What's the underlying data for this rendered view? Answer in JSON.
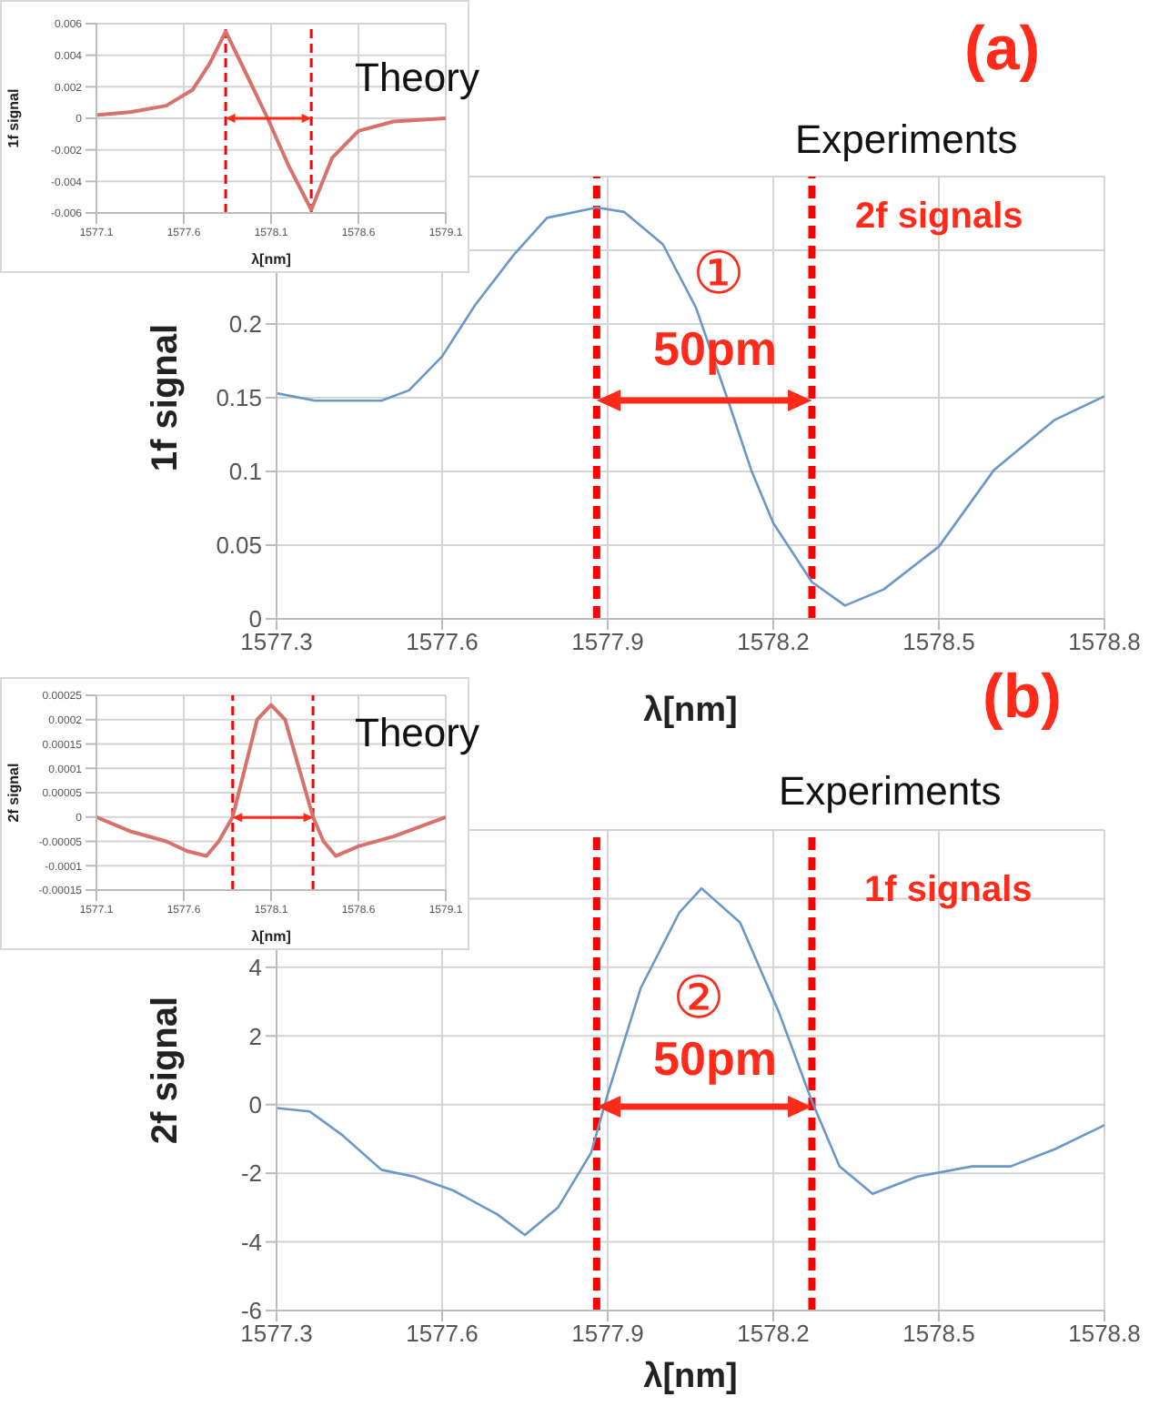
{
  "chart_data": [
    {
      "type": "line",
      "title": "Theory",
      "xlabel": "λ[nm]",
      "ylabel": "1f signal",
      "color": "#d6726b",
      "x": [
        1577.1,
        1577.3,
        1577.5,
        1577.65,
        1577.75,
        1577.84,
        1577.95,
        1578.08,
        1578.2,
        1578.33,
        1578.45,
        1578.6,
        1578.8,
        1579.1
      ],
      "values": [
        0.0002,
        0.0004,
        0.0008,
        0.0018,
        0.0035,
        0.0055,
        0.003,
        0,
        -0.003,
        -0.0058,
        -0.0025,
        -0.0008,
        -0.0002,
        0
      ],
      "xlim": [
        1577.1,
        1579.1
      ],
      "xticks": [
        1577.1,
        1577.6,
        1578.1,
        1578.6,
        1579.1
      ],
      "ylim": [
        -0.006,
        0.006
      ],
      "yticks": [
        -0.006,
        -0.004,
        -0.002,
        0,
        0.002,
        0.004,
        0.006
      ],
      "grid": true,
      "ref_lines": [
        {
          "axis": "x",
          "value": 1577.84,
          "color": "#ff0000",
          "line_style": "dashed"
        },
        {
          "axis": "x",
          "value": 1578.33,
          "color": "#ff0000",
          "line_style": "dashed"
        }
      ]
    },
    {
      "type": "line",
      "title": "Experiments",
      "xlabel": "λ[nm]",
      "ylabel": "1f signal",
      "color": "#6b96c8",
      "x": [
        1577.3,
        1577.37,
        1577.49,
        1577.54,
        1577.6,
        1577.66,
        1577.73,
        1577.79,
        1577.88,
        1577.93,
        1578.0,
        1578.06,
        1578.12,
        1578.16,
        1578.2,
        1578.27,
        1578.33,
        1578.4,
        1578.5,
        1578.6,
        1578.71,
        1578.8
      ],
      "values": [
        0.153,
        0.148,
        0.148,
        0.155,
        0.178,
        0.213,
        0.247,
        0.272,
        0.279,
        0.276,
        0.254,
        0.211,
        0.146,
        0.101,
        0.065,
        0.025,
        0.009,
        0.02,
        0.049,
        0.101,
        0.135,
        0.151
      ],
      "xlim": [
        1577.3,
        1578.8
      ],
      "xticks": [
        1577.3,
        1577.6,
        1577.9,
        1578.2,
        1578.5,
        1578.8
      ],
      "ylim": [
        0,
        0.3
      ],
      "yticks": [
        0,
        0.05,
        0.1,
        0.15,
        0.2,
        {
          "value": 0.25,
          "label": null
        },
        {
          "value": 0.3,
          "label": null
        }
      ],
      "grid": true,
      "annotations": [
        "(a)",
        "2f signals",
        "①",
        "50pm"
      ],
      "ref_lines": [
        {
          "axis": "x",
          "value": 1577.88,
          "color": "#ff0000",
          "line_style": "dashed"
        },
        {
          "axis": "x",
          "value": 1578.27,
          "color": "#ff0000",
          "line_style": "dashed"
        }
      ]
    },
    {
      "type": "line",
      "title": "Theory",
      "xlabel": "λ[nm]",
      "ylabel": "2f signal",
      "color": "#d6726b",
      "x": [
        1577.1,
        1577.3,
        1577.5,
        1577.62,
        1577.73,
        1577.8,
        1577.88,
        1577.95,
        1578.02,
        1578.1,
        1578.18,
        1578.26,
        1578.34,
        1578.4,
        1578.47,
        1578.6,
        1578.8,
        1579.1
      ],
      "values": [
        0,
        -3e-05,
        -5e-05,
        -7e-05,
        -8e-05,
        -5e-05,
        0,
        0.0001,
        0.0002,
        0.00023,
        0.0002,
        0.0001,
        0,
        -5e-05,
        -8e-05,
        -6e-05,
        -4e-05,
        0
      ],
      "xlim": [
        1577.1,
        1579.1
      ],
      "xticks": [
        1577.1,
        1577.6,
        1578.1,
        1578.6,
        1579.1
      ],
      "ylim": [
        -0.00015,
        0.00025
      ],
      "yticks": [
        -0.00015,
        -0.0001,
        {
          "value": -5e-05,
          "label": "-0.00005"
        },
        0,
        {
          "value": 5e-05,
          "label": "0.00005"
        },
        0.0001,
        0.00015,
        0.0002,
        0.00025
      ],
      "grid": true,
      "ref_lines": [
        {
          "axis": "x",
          "value": 1577.88,
          "color": "#ff0000",
          "line_style": "dashed"
        },
        {
          "axis": "x",
          "value": 1578.34,
          "color": "#ff0000",
          "line_style": "dashed"
        }
      ]
    },
    {
      "type": "line",
      "title": "Experiments",
      "xlabel": "λ[nm]",
      "ylabel": "2f signal",
      "color": "#6b96c8",
      "x": [
        1577.3,
        1577.36,
        1577.42,
        1577.49,
        1577.55,
        1577.62,
        1577.7,
        1577.75,
        1577.81,
        1577.87,
        1577.9,
        1577.96,
        1578.03,
        1578.07,
        1578.14,
        1578.21,
        1578.27,
        1578.32,
        1578.38,
        1578.46,
        1578.56,
        1578.63,
        1578.71,
        1578.8
      ],
      "values": [
        -0.1,
        -0.2,
        -0.9,
        -1.9,
        -2.1,
        -2.5,
        -3.2,
        -3.8,
        -3.0,
        -1.4,
        0.3,
        3.4,
        5.6,
        6.3,
        5.3,
        2.7,
        0.1,
        -1.8,
        -2.6,
        -2.1,
        -1.8,
        -1.8,
        -1.3,
        -0.6
      ],
      "xlim": [
        1577.3,
        1578.8
      ],
      "xticks": [
        1577.3,
        1577.6,
        1577.9,
        1578.2,
        1578.5,
        1578.8
      ],
      "ylim": [
        -6,
        8
      ],
      "yticks": [
        -6,
        -4,
        -2,
        0,
        2,
        4,
        {
          "value": 6,
          "label": null
        },
        {
          "value": 8,
          "label": null
        }
      ],
      "grid": true,
      "annotations": [
        "(b)",
        "1f signals",
        "②",
        "50pm"
      ],
      "ref_lines": [
        {
          "axis": "x",
          "value": 1577.88,
          "color": "#ff0000",
          "line_style": "dashed"
        },
        {
          "axis": "x",
          "value": 1578.27,
          "color": "#ff0000",
          "line_style": "dashed"
        }
      ]
    }
  ]
}
